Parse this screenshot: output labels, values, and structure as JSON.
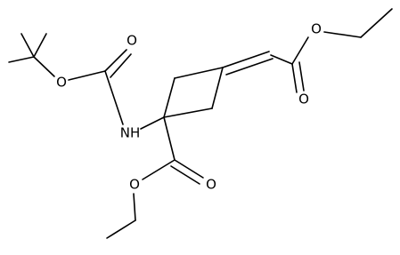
{
  "atoms": [
    {
      "label": "O"
    },
    {
      "label": "O"
    },
    {
      "label": "NH"
    },
    {
      "label": "O"
    },
    {
      "label": "O"
    },
    {
      "label": "O"
    },
    {
      "label": "O"
    }
  ]
}
